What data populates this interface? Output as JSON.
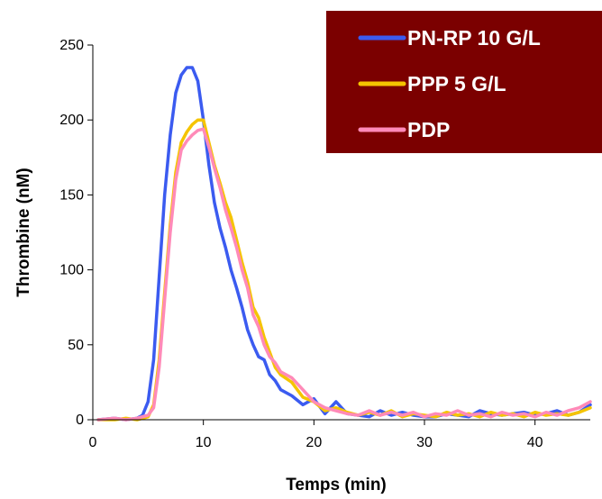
{
  "chart_data": {
    "type": "line",
    "xlabel": "Temps (min)",
    "ylabel": "Thrombine (nM)",
    "xlim": [
      0,
      45
    ],
    "ylim": [
      0,
      250
    ],
    "x_ticks": [
      "0",
      "10",
      "20",
      "30",
      "40"
    ],
    "y_ticks": [
      "0",
      "50",
      "100",
      "150",
      "200",
      "250"
    ],
    "grid": false,
    "legend_position": "top-right",
    "legend_background": "#7b0000",
    "series": [
      {
        "name": "PN-RP 10 G/L",
        "color": "#3b5bf0",
        "x": [
          0.5,
          2,
          3,
          4,
          4.5,
          5,
          5.5,
          6,
          6.5,
          7,
          7.5,
          8,
          8.5,
          9,
          9.5,
          10,
          10.5,
          11,
          11.5,
          12,
          12.5,
          13,
          13.5,
          14,
          14.5,
          15,
          15.5,
          16,
          16.5,
          17,
          18,
          19,
          20,
          21,
          22,
          23,
          24,
          25,
          26,
          27,
          28,
          29,
          30,
          31,
          32,
          33,
          34,
          35,
          36,
          37,
          38,
          39,
          40,
          41,
          42,
          43,
          44,
          45
        ],
        "y": [
          0,
          1,
          0,
          1,
          3,
          12,
          40,
          95,
          150,
          190,
          218,
          230,
          235,
          235,
          226,
          200,
          170,
          145,
          128,
          115,
          100,
          88,
          75,
          60,
          50,
          42,
          40,
          30,
          26,
          20,
          16,
          10,
          14,
          4,
          12,
          4,
          3,
          2,
          6,
          3,
          5,
          3,
          2,
          2,
          4,
          3,
          2,
          6,
          4,
          3,
          4,
          5,
          3,
          4,
          6,
          3,
          5,
          10
        ]
      },
      {
        "name": "PPP 5 G/L",
        "color": "#f5c400",
        "x": [
          0.5,
          2,
          3,
          4,
          5,
          5.5,
          6,
          6.5,
          7,
          7.5,
          8,
          8.5,
          9,
          9.5,
          10,
          10.5,
          11,
          11.5,
          12,
          12.5,
          13,
          13.5,
          14,
          14.5,
          15,
          15.5,
          16,
          16.5,
          17,
          18,
          19,
          20,
          21,
          22,
          23,
          24,
          25,
          26,
          27,
          28,
          29,
          30,
          31,
          32,
          33,
          34,
          35,
          36,
          37,
          38,
          39,
          40,
          41,
          42,
          43,
          44,
          45
        ],
        "y": [
          0,
          0,
          1,
          0,
          2,
          10,
          40,
          85,
          130,
          165,
          185,
          192,
          197,
          200,
          200,
          185,
          170,
          158,
          145,
          135,
          120,
          105,
          92,
          75,
          68,
          55,
          45,
          35,
          30,
          25,
          15,
          12,
          6,
          8,
          5,
          3,
          5,
          3,
          6,
          2,
          4,
          3,
          2,
          5,
          3,
          4,
          2,
          5,
          3,
          4,
          2,
          5,
          3,
          4,
          3,
          5,
          8
        ]
      },
      {
        "name": "PDP",
        "color": "#ff8ab8",
        "x": [
          0.5,
          2,
          3,
          4,
          5,
          5.5,
          6,
          6.5,
          7,
          7.5,
          8,
          8.5,
          9,
          9.5,
          10,
          10.5,
          11,
          11.5,
          12,
          12.5,
          13,
          13.5,
          14,
          14.5,
          15,
          15.5,
          16,
          16.5,
          17,
          18,
          19,
          20,
          21,
          22,
          23,
          24,
          25,
          26,
          27,
          28,
          29,
          30,
          31,
          32,
          33,
          34,
          35,
          36,
          37,
          38,
          39,
          40,
          41,
          42,
          43,
          44,
          45
        ],
        "y": [
          0,
          1,
          0,
          1,
          3,
          8,
          35,
          80,
          125,
          160,
          180,
          186,
          190,
          193,
          194,
          182,
          168,
          155,
          140,
          128,
          115,
          100,
          88,
          70,
          62,
          50,
          42,
          38,
          32,
          28,
          20,
          12,
          8,
          6,
          4,
          3,
          6,
          3,
          5,
          3,
          5,
          2,
          4,
          3,
          6,
          3,
          4,
          2,
          5,
          3,
          4,
          2,
          5,
          3,
          6,
          8,
          12
        ]
      }
    ]
  }
}
